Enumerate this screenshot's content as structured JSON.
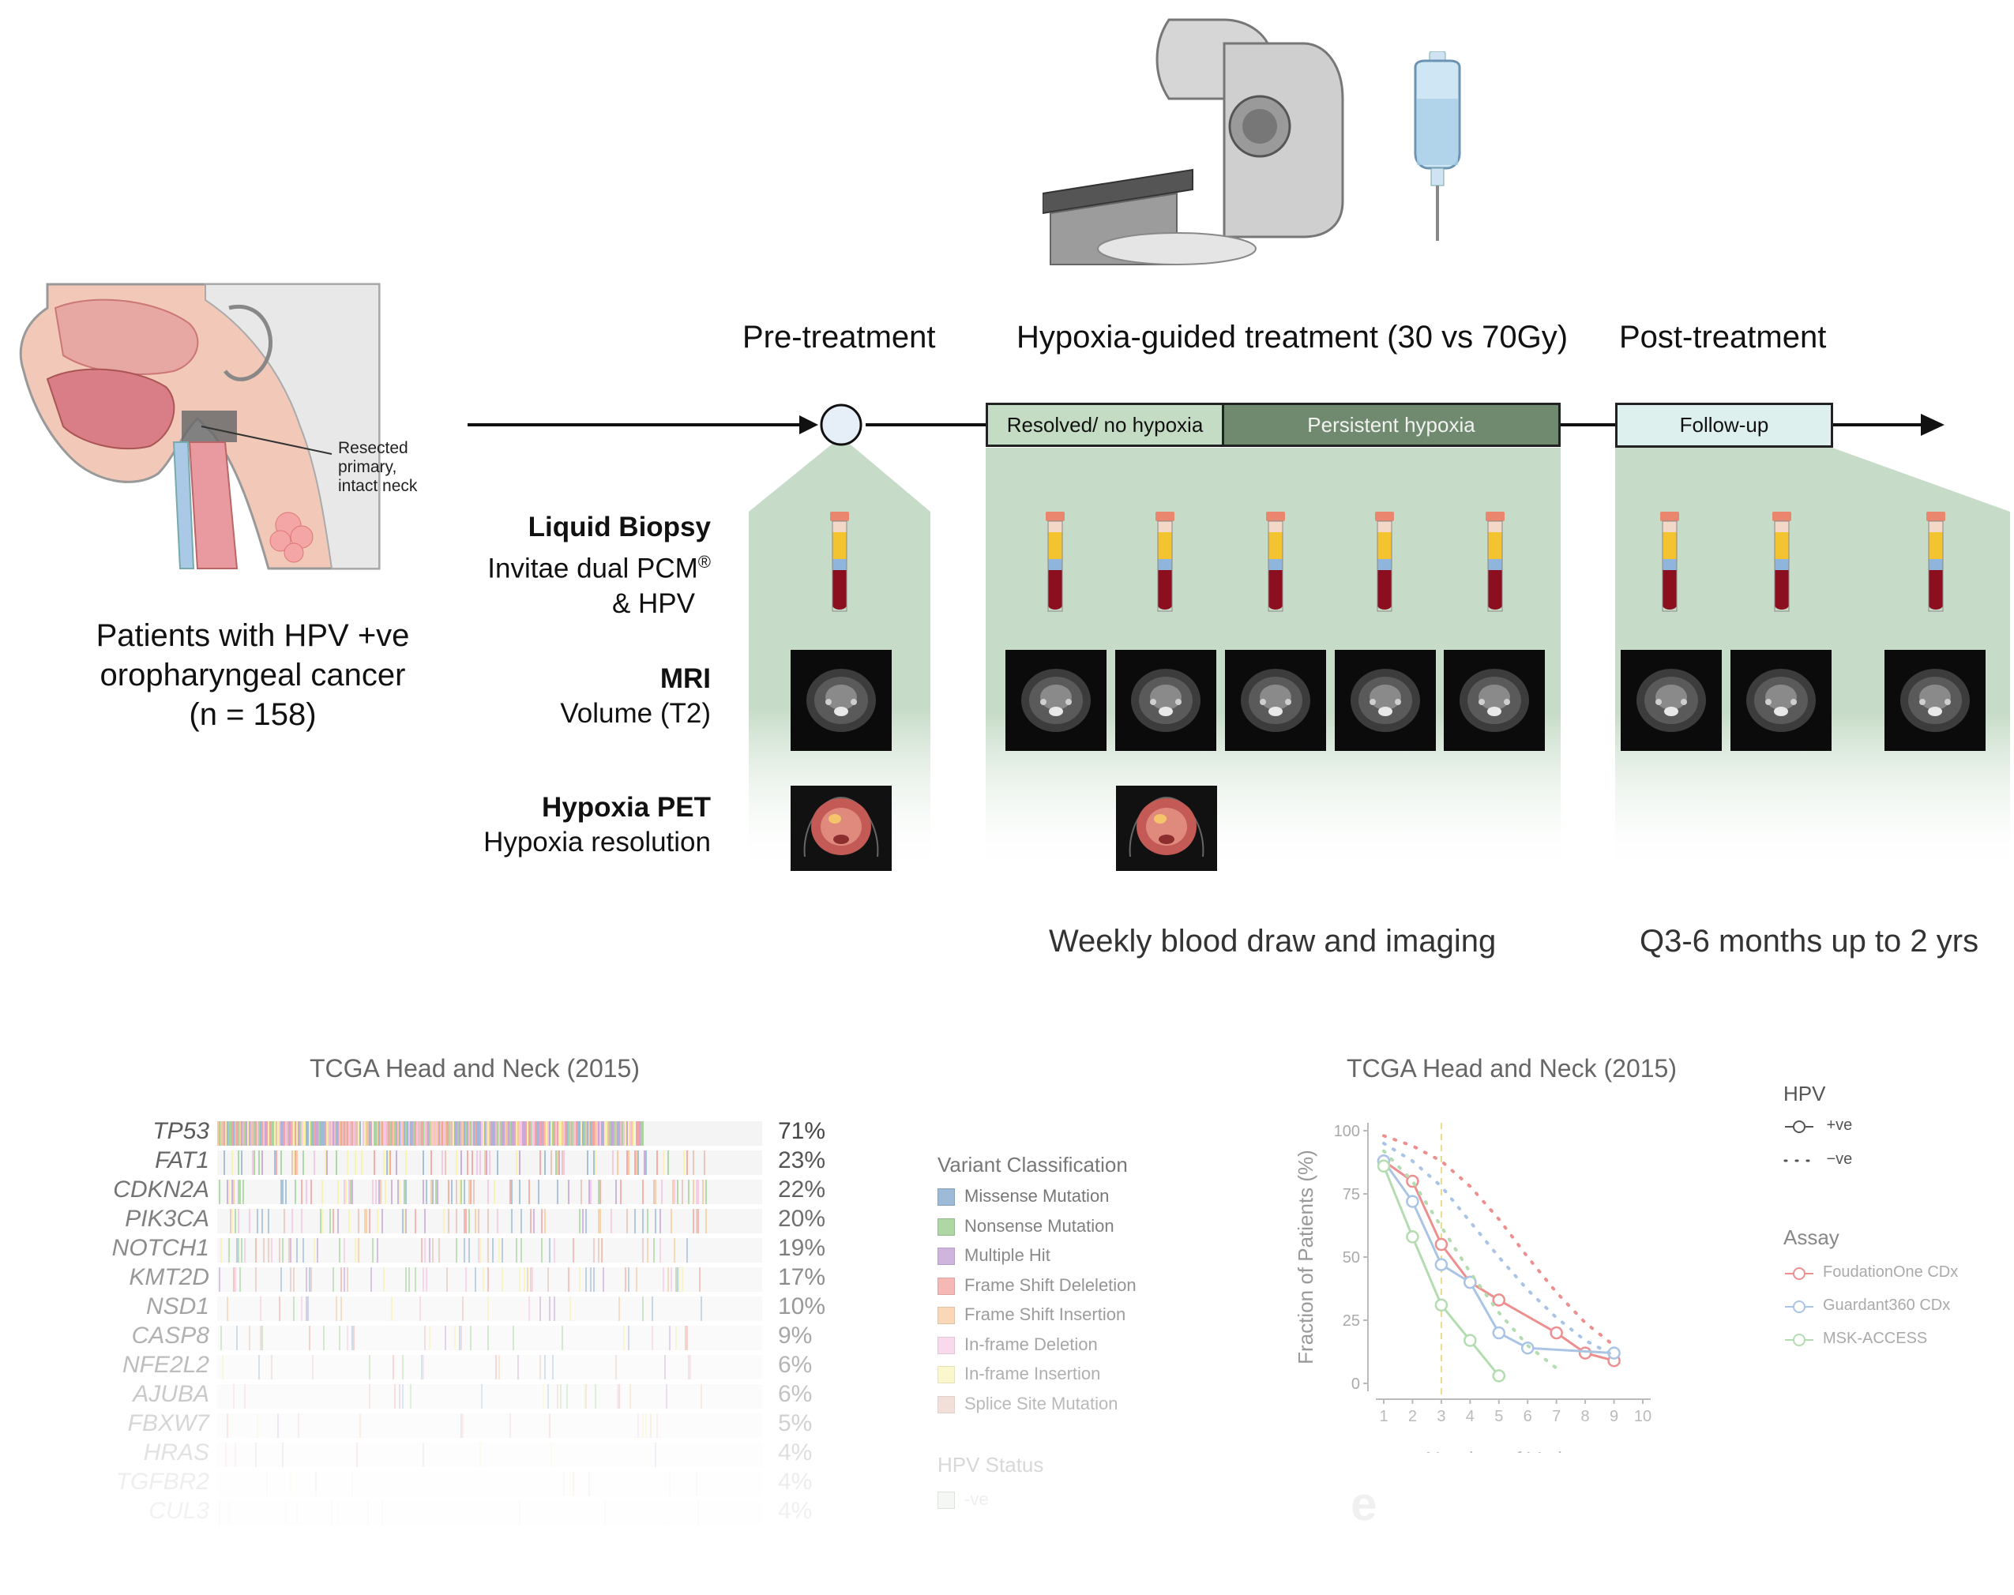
{
  "patients": {
    "anatomy_label": [
      "Resected",
      "primary,",
      "intact neck"
    ],
    "caption": [
      "Patients with HPV +ve",
      "oropharyngeal cancer",
      "(n = 158)"
    ]
  },
  "phases": {
    "pre": "Pre-treatment",
    "treatment": "Hypoxia-guided treatment (30 vs 70Gy)",
    "post": "Post-treatment"
  },
  "timeline_boxes": {
    "resolved": "Resolved/ no hypoxia",
    "persistent": "Persistent hypoxia",
    "followup": "Follow-up"
  },
  "rows": {
    "liquid": {
      "title": "Liquid Biopsy",
      "line1": "Invitae dual PCM",
      "sup": "®",
      "line2": "& HPV"
    },
    "mri": {
      "title": "MRI",
      "line1": "Volume (T2)"
    },
    "pet": {
      "title": "Hypoxia PET",
      "line1": "Hypoxia resolution"
    }
  },
  "captions": {
    "weekly": "Weekly blood draw and imaging",
    "q36": "Q3-6 months up to 2 yrs"
  },
  "oncoplot": {
    "title": "TCGA Head and Neck (2015)",
    "genes": [
      {
        "name": "TP53",
        "pct": "71%"
      },
      {
        "name": "FAT1",
        "pct": "23%"
      },
      {
        "name": "CDKN2A",
        "pct": "22%"
      },
      {
        "name": "PIK3CA",
        "pct": "20%"
      },
      {
        "name": "NOTCH1",
        "pct": "19%"
      },
      {
        "name": "KMT2D",
        "pct": "17%"
      },
      {
        "name": "NSD1",
        "pct": "10%"
      },
      {
        "name": "CASP8",
        "pct": "9%"
      },
      {
        "name": "NFE2L2",
        "pct": "6%"
      },
      {
        "name": "AJUBA",
        "pct": "6%"
      },
      {
        "name": "FBXW7",
        "pct": "5%"
      },
      {
        "name": "HRAS",
        "pct": "4%"
      },
      {
        "name": "TGFBR2",
        "pct": "4%"
      },
      {
        "name": "CUL3",
        "pct": "4%"
      }
    ],
    "legend_title": "Variant Classification",
    "legend": [
      {
        "label": "Missense Mutation",
        "color": "#9dbbd8"
      },
      {
        "label": "Nonsense Mutation",
        "color": "#a9d4a0"
      },
      {
        "label": "Multiple Hit",
        "color": "#c8a8d8"
      },
      {
        "label": "Frame Shift Deleletion",
        "color": "#f3a6a0"
      },
      {
        "label": "Frame Shift Insertion",
        "color": "#f7c99c"
      },
      {
        "label": "In-frame Deletion",
        "color": "#f6c6e2"
      },
      {
        "label": "In-frame Insertion",
        "color": "#f7f2a8"
      },
      {
        "label": "Splice Site Mutation",
        "color": "#e6c2b8"
      }
    ],
    "hpv_title": "HPV Status",
    "hpv_item": "-ve"
  },
  "chart_data": {
    "type": "line",
    "title": "TCGA Head and Neck (2015)",
    "xlabel": "Number of Variants",
    "ylabel": "Fraction of Patients (%)",
    "xlim": [
      1,
      10
    ],
    "ylim": [
      0,
      100
    ],
    "xticks": [
      "1",
      "2",
      "3",
      "4",
      "5",
      "6",
      "7",
      "8",
      "9",
      "10"
    ],
    "yticks": [
      "0",
      "25",
      "50",
      "75",
      "100"
    ],
    "vline_x": 3,
    "legend_hpv_title": "HPV",
    "legend_hpv": [
      {
        "label": "+ve",
        "style": "solid"
      },
      {
        "label": "−ve",
        "style": "dotted"
      }
    ],
    "legend_assay_title": "Assay",
    "series": [
      {
        "name": "FoudationOne CDx",
        "hpv": "+ve",
        "color": "#ee8f8f",
        "x": [
          1,
          2,
          3,
          4,
          5,
          7,
          8,
          9
        ],
        "y": [
          88,
          80,
          55,
          40,
          33,
          20,
          12,
          9
        ]
      },
      {
        "name": "Guardant360 CDx",
        "hpv": "+ve",
        "color": "#a9c4e4",
        "x": [
          1,
          2,
          3,
          4,
          5,
          6,
          9
        ],
        "y": [
          88,
          72,
          47,
          40,
          20,
          14,
          12
        ]
      },
      {
        "name": "MSK-ACCESS",
        "hpv": "+ve",
        "color": "#b3dcb0",
        "x": [
          1,
          2,
          3,
          4,
          5
        ],
        "y": [
          86,
          58,
          31,
          17,
          3
        ]
      },
      {
        "name": "FoudationOne CDx",
        "hpv": "−ve",
        "color": "#ee8f8f",
        "x": [
          1,
          2,
          3,
          4,
          5,
          6,
          7,
          8,
          9
        ],
        "y": [
          98,
          94,
          88,
          78,
          65,
          50,
          36,
          24,
          15
        ]
      },
      {
        "name": "Guardant360 CDx",
        "hpv": "−ve",
        "color": "#a9c4e4",
        "x": [
          1,
          2,
          3,
          4,
          5,
          6,
          7,
          8,
          9
        ],
        "y": [
          95,
          88,
          78,
          64,
          50,
          37,
          26,
          17,
          11
        ]
      },
      {
        "name": "MSK-ACCESS",
        "hpv": "−ve",
        "color": "#b3dcb0",
        "x": [
          1,
          2,
          3,
          4,
          5,
          6,
          7
        ],
        "y": [
          92,
          80,
          62,
          44,
          28,
          15,
          6
        ]
      }
    ]
  }
}
